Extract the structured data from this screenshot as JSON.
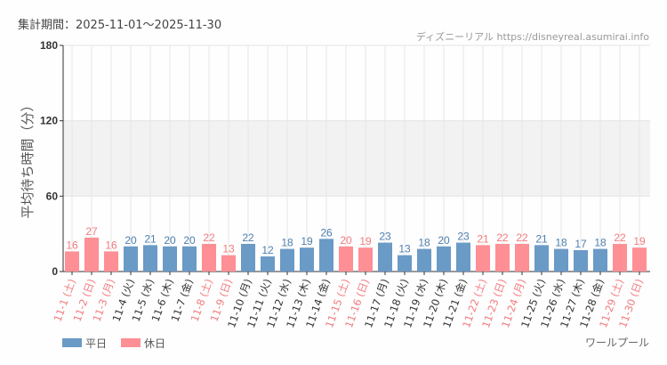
{
  "header": {
    "period": "集計期間：2025-11-01〜2025-11-30",
    "source": "ディズニーリアル https://disneyreal.asumirai.info"
  },
  "colors": {
    "weekday": "#6a9ac6",
    "holiday": "#fd8f95",
    "holiday_text": "#f47b80",
    "weekday_text": "#4f7fb0"
  },
  "chart_data": {
    "type": "bar",
    "ylabel": "平均待ち時間（分）",
    "ylim": [
      0,
      180
    ],
    "yticks": [
      "0",
      "60",
      "120",
      "180"
    ],
    "shaded_band": [
      60,
      120
    ],
    "grid": true,
    "legend_position": "bottom-left",
    "legend": [
      {
        "name": "平日",
        "kind": "weekday"
      },
      {
        "name": "休日",
        "kind": "holiday"
      }
    ],
    "attraction": "ワールプール",
    "categories": [
      "11-1 (土)",
      "11-2 (日)",
      "11-3 (月)",
      "11-4 (火)",
      "11-5 (水)",
      "11-6 (木)",
      "11-7 (金)",
      "11-8 (土)",
      "11-9 (日)",
      "11-10 (月)",
      "11-11 (火)",
      "11-12 (水)",
      "11-13 (木)",
      "11-14 (金)",
      "11-15 (土)",
      "11-16 (日)",
      "11-17 (月)",
      "11-18 (火)",
      "11-19 (水)",
      "11-20 (木)",
      "11-21 (金)",
      "11-22 (土)",
      "11-23 (日)",
      "11-24 (月)",
      "11-25 (火)",
      "11-26 (水)",
      "11-27 (木)",
      "11-28 (金)",
      "11-29 (土)",
      "11-30 (日)"
    ],
    "values": [
      16,
      27,
      16,
      20,
      21,
      20,
      20,
      22,
      13,
      22,
      12,
      18,
      19,
      26,
      20,
      19,
      23,
      13,
      18,
      20,
      23,
      21,
      22,
      22,
      21,
      18,
      17,
      18,
      22,
      19
    ],
    "holiday": [
      1,
      1,
      1,
      0,
      0,
      0,
      0,
      1,
      1,
      0,
      0,
      0,
      0,
      0,
      1,
      1,
      0,
      0,
      0,
      0,
      0,
      1,
      1,
      1,
      0,
      0,
      0,
      0,
      1,
      1
    ]
  }
}
